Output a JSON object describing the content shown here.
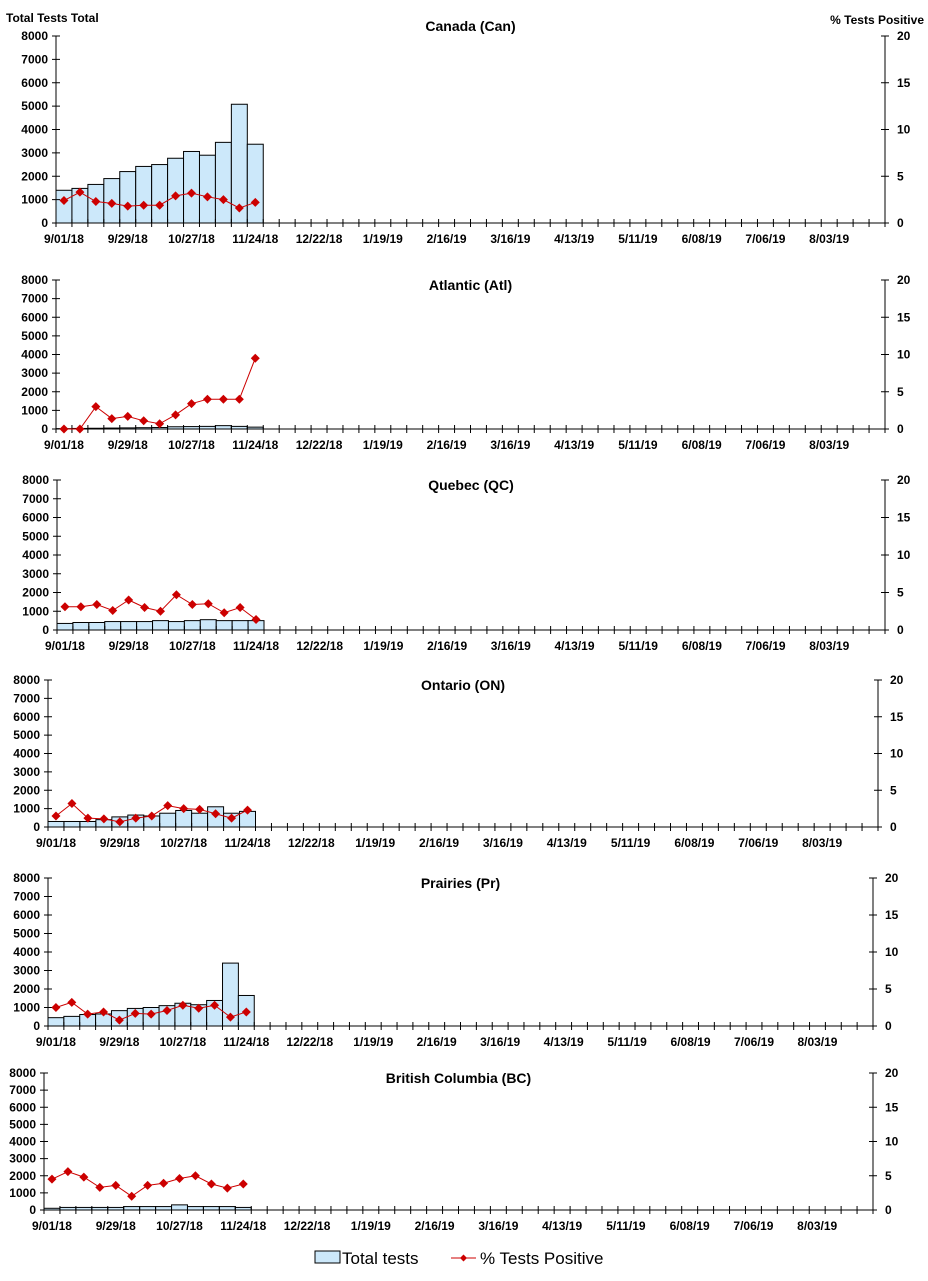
{
  "chart_data": [
    {
      "type": "bar+line",
      "title": "Canada (Can)",
      "ylabel_left": "Total Tests Total",
      "ylabel_right": "% Tests Positive",
      "ylim_left": [
        0,
        8000
      ],
      "ylim_right": [
        0,
        20
      ],
      "total_tests": [
        1400,
        1480,
        1650,
        1900,
        2200,
        2420,
        2500,
        2770,
        3060,
        2900,
        3450,
        5080,
        3370
      ],
      "pct_positive": [
        2.4,
        3.3,
        2.3,
        2.1,
        1.8,
        1.9,
        1.9,
        2.9,
        3.2,
        2.8,
        2.5,
        1.6,
        2.2
      ]
    },
    {
      "type": "bar+line",
      "title": "Atlantic (Atl)",
      "ylim_left": [
        0,
        8000
      ],
      "ylim_right": [
        0,
        20
      ],
      "total_tests": [
        20,
        30,
        40,
        50,
        60,
        70,
        80,
        120,
        130,
        140,
        180,
        140,
        100
      ],
      "pct_positive": [
        0,
        0,
        3.0,
        1.4,
        1.7,
        1.1,
        0.7,
        1.9,
        3.4,
        4.0,
        4.0,
        4.0,
        9.5
      ]
    },
    {
      "type": "bar+line",
      "title": "Quebec (QC)",
      "ylim_left": [
        0,
        8000
      ],
      "ylim_right": [
        0,
        20
      ],
      "total_tests": [
        350,
        400,
        400,
        450,
        450,
        450,
        500,
        450,
        500,
        550,
        500,
        500,
        500
      ],
      "pct_positive": [
        3.1,
        3.1,
        3.4,
        2.6,
        4.0,
        3.0,
        2.5,
        4.7,
        3.4,
        3.5,
        2.3,
        3.0,
        1.4
      ]
    },
    {
      "type": "bar+line",
      "title": "Ontario (ON)",
      "ylim_left": [
        0,
        8000
      ],
      "ylim_right": [
        0,
        20
      ],
      "total_tests": [
        300,
        300,
        300,
        400,
        550,
        650,
        600,
        750,
        900,
        750,
        1100,
        750,
        850
      ],
      "pct_positive": [
        1.5,
        3.2,
        1.2,
        1.1,
        0.7,
        1.2,
        1.5,
        2.9,
        2.5,
        2.4,
        1.8,
        1.2,
        2.3
      ]
    },
    {
      "type": "bar+line",
      "title": "Prairies (Pr)",
      "ylim_left": [
        0,
        8000
      ],
      "ylim_right": [
        0,
        20
      ],
      "total_tests": [
        450,
        520,
        620,
        650,
        830,
        950,
        1000,
        1100,
        1230,
        1150,
        1380,
        3400,
        1650
      ],
      "pct_positive": [
        2.5,
        3.2,
        1.6,
        1.9,
        0.8,
        1.7,
        1.6,
        2.1,
        2.8,
        2.4,
        2.8,
        1.2,
        1.9
      ]
    },
    {
      "type": "bar+line",
      "title": "British Columbia (BC)",
      "ylim_left": [
        0,
        8000
      ],
      "ylim_right": [
        0,
        20
      ],
      "total_tests": [
        100,
        150,
        150,
        150,
        150,
        200,
        200,
        200,
        300,
        200,
        200,
        200,
        150
      ],
      "pct_positive": [
        4.5,
        5.6,
        4.8,
        3.3,
        3.6,
        2.0,
        3.6,
        3.9,
        4.6,
        5.0,
        3.8,
        3.2,
        3.8
      ]
    }
  ],
  "x_ticks": [
    "9/01/18",
    "9/29/18",
    "10/27/18",
    "11/24/18",
    "12/22/18",
    "1/19/19",
    "2/16/19",
    "3/16/19",
    "4/13/19",
    "5/11/19",
    "6/08/19",
    "7/06/19",
    "8/03/19"
  ],
  "left_ticks": [
    "0",
    "1000",
    "2000",
    "3000",
    "4000",
    "5000",
    "6000",
    "7000",
    "8000"
  ],
  "right_ticks": [
    "0",
    "5",
    "10",
    "15",
    "20"
  ],
  "legend": {
    "bars": "Total tests",
    "line": "% Tests Positive"
  },
  "colors": {
    "bar_fill": "#cce8fa",
    "bar_stroke": "#000000",
    "line": "#cc0000"
  }
}
